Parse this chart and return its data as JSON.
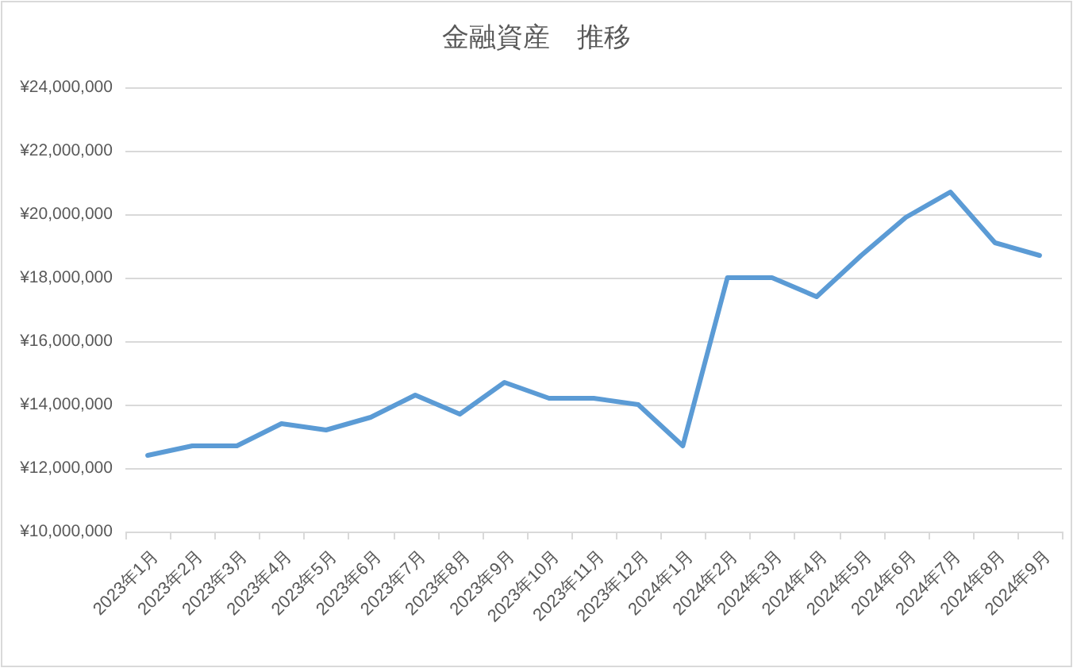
{
  "chart_data": {
    "type": "line",
    "title": "金融資産　推移",
    "categories": [
      "2023年1月",
      "2023年2月",
      "2023年3月",
      "2023年4月",
      "2023年5月",
      "2023年6月",
      "2023年7月",
      "2023年8月",
      "2023年9月",
      "2023年10月",
      "2023年11月",
      "2023年12月",
      "2024年1月",
      "2024年2月",
      "2024年3月",
      "2024年4月",
      "2024年5月",
      "2024年6月",
      "2024年7月",
      "2024年8月",
      "2024年9月"
    ],
    "series": [
      {
        "color": "#5b9bd5",
        "values": [
          12400000,
          12700000,
          12700000,
          13400000,
          13200000,
          13600000,
          14300000,
          13700000,
          14700000,
          14200000,
          14200000,
          14000000,
          12700000,
          18000000,
          18000000,
          17400000,
          18700000,
          19900000,
          20700000,
          19100000,
          18700000
        ]
      }
    ],
    "ylim": [
      10000000,
      24000000
    ],
    "yticks": [
      {
        "value": 10000000,
        "label": "¥10,000,000"
      },
      {
        "value": 12000000,
        "label": "¥12,000,000"
      },
      {
        "value": 14000000,
        "label": "¥14,000,000"
      },
      {
        "value": 16000000,
        "label": "¥16,000,000"
      },
      {
        "value": 18000000,
        "label": "¥18,000,000"
      },
      {
        "value": 20000000,
        "label": "¥20,000,000"
      },
      {
        "value": 22000000,
        "label": "¥22,000,000"
      },
      {
        "value": 24000000,
        "label": "¥24,000,000"
      }
    ],
    "grid": "y"
  }
}
